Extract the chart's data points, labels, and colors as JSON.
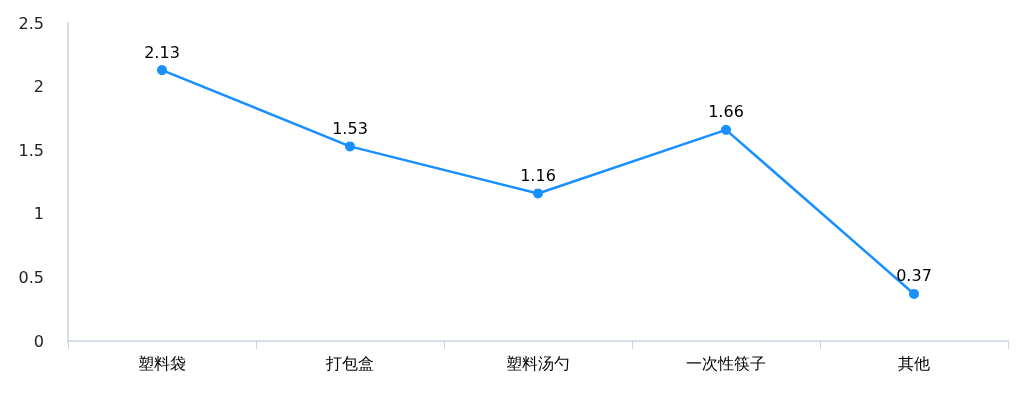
{
  "chart_data": {
    "type": "line",
    "categories": [
      "塑料袋",
      "打包盒",
      "塑料汤勺",
      "一次性筷子",
      "其他"
    ],
    "series": [
      {
        "color": "#1890ff",
        "values": [
          2.13,
          1.53,
          1.16,
          1.66,
          0.37
        ]
      }
    ],
    "ylim": [
      0,
      2.5
    ],
    "yticks": [
      0,
      0.5,
      1,
      1.5,
      2,
      2.5
    ],
    "grid": false,
    "marker": "circle",
    "line_style": "solid",
    "data_labels": true
  }
}
